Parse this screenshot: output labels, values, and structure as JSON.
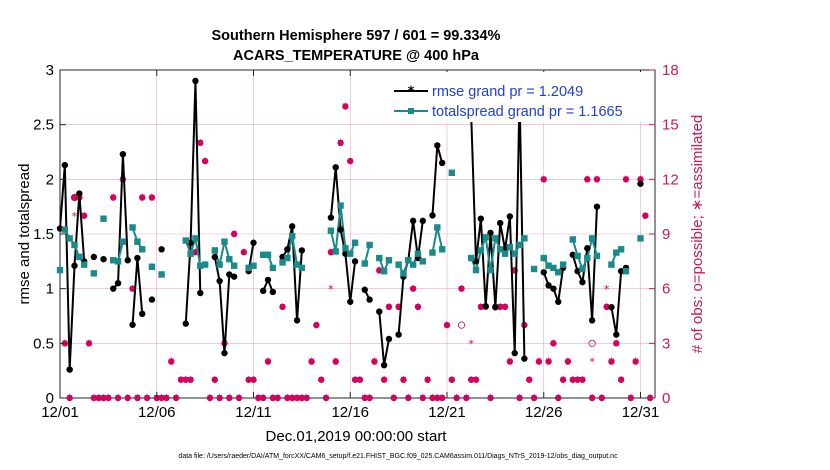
{
  "chart_data": {
    "type": "line",
    "title_line1": "Southern Hemisphere 597 / 601 = 99.334%",
    "title_line2": "ACARS_TEMPERATURE @ 400 hPa",
    "xlabel": "Dec.01,2019 00:00:00 start",
    "ylabel_left": "rmse and totalspread",
    "ylabel_right": "# of obs: o=possible; ∗=assimilated",
    "xlim": [
      0,
      30.75
    ],
    "ylim_left": [
      0,
      3
    ],
    "ylim_right": [
      0,
      18
    ],
    "x_ticks": [
      0,
      5,
      10,
      15,
      20,
      25,
      30
    ],
    "x_tick_labels": [
      "12/01",
      "12/06",
      "12/11",
      "12/16",
      "12/21",
      "12/26",
      "12/31"
    ],
    "y_ticks_left": [
      0,
      0.5,
      1,
      1.5,
      2,
      2.5,
      3
    ],
    "y_tick_labels_left": [
      "0",
      "0.5",
      "1",
      "1.5",
      "2",
      "2.5",
      "3"
    ],
    "y_ticks_right": [
      0,
      3,
      6,
      9,
      12,
      15,
      18
    ],
    "y_tick_labels_right": [
      "0",
      "3",
      "6",
      "9",
      "12",
      "15",
      "18"
    ],
    "grid": true,
    "legend_position": "top-right",
    "colors": {
      "rmse": "#000000",
      "spread": "#1a8a8a",
      "obs": "#d6005f",
      "legend_text": "#1f3fd6"
    },
    "series": [
      {
        "name": "rmse",
        "legend": "rmse grand pr = 1.2049",
        "segments": [
          [
            [
              0.0,
              1.55
            ],
            [
              0.25,
              2.13
            ],
            [
              0.5,
              0.26
            ],
            [
              0.75,
              1.21
            ],
            [
              1.0,
              1.87
            ],
            [
              1.25,
              1.25
            ]
          ],
          [
            [
              1.75,
              1.29
            ]
          ],
          [
            [
              2.25,
              1.27
            ]
          ],
          [
            [
              2.75,
              1.0
            ],
            [
              3.0,
              1.05
            ],
            [
              3.25,
              2.23
            ],
            [
              3.5,
              1.26
            ]
          ],
          [
            [
              3.75,
              0.67
            ],
            [
              4.0,
              1.28
            ],
            [
              4.25,
              0.77
            ]
          ],
          [
            [
              4.75,
              0.9
            ]
          ],
          [
            [
              5.25,
              1.36
            ]
          ],
          [
            [
              6.5,
              0.68
            ],
            [
              6.75,
              1.42
            ],
            [
              7.0,
              2.9
            ],
            [
              7.25,
              0.96
            ]
          ],
          [
            [
              8.0,
              1.29
            ],
            [
              8.25,
              1.07
            ],
            [
              8.5,
              0.41
            ],
            [
              8.75,
              1.13
            ],
            [
              9.0,
              1.11
            ]
          ],
          [
            [
              9.75,
              1.16
            ],
            [
              10.0,
              1.42
            ]
          ],
          [
            [
              10.5,
              0.98
            ],
            [
              10.75,
              1.08
            ],
            [
              11.0,
              0.97
            ]
          ],
          [
            [
              11.5,
              1.29
            ],
            [
              11.75,
              1.36
            ],
            [
              12.0,
              1.57
            ],
            [
              12.25,
              0.71
            ],
            [
              12.5,
              1.35
            ]
          ],
          [
            [
              14.0,
              1.65
            ],
            [
              14.25,
              2.11
            ],
            [
              14.5,
              1.54
            ],
            [
              14.75,
              1.32
            ],
            [
              15.0,
              0.88
            ],
            [
              15.25,
              1.25
            ]
          ],
          [
            [
              15.75,
              0.99
            ],
            [
              16.0,
              0.9
            ]
          ],
          [
            [
              16.5,
              0.79
            ],
            [
              16.75,
              0.3
            ],
            [
              17.0,
              0.54
            ]
          ],
          [
            [
              17.5,
              0.58
            ],
            [
              17.75,
              1.11
            ],
            [
              18.0,
              1.26
            ],
            [
              18.25,
              1.62
            ],
            [
              18.5,
              1.28
            ],
            [
              18.75,
              1.62
            ]
          ],
          [
            [
              19.25,
              1.67
            ],
            [
              19.5,
              2.31
            ],
            [
              19.75,
              2.15
            ]
          ],
          [
            [
              21.25,
              2.59
            ],
            [
              21.5,
              1.25
            ],
            [
              21.75,
              1.64
            ],
            [
              22.0,
              0.84
            ],
            [
              22.25,
              1.51
            ],
            [
              22.5,
              0.83
            ],
            [
              22.75,
              1.6
            ],
            [
              23.0,
              1.36
            ],
            [
              23.25,
              1.66
            ],
            [
              23.5,
              0.41
            ],
            [
              23.75,
              2.79
            ],
            [
              24.0,
              0.36
            ]
          ],
          [
            [
              25.0,
              1.15
            ],
            [
              25.25,
              1.03
            ],
            [
              25.5,
              1.0
            ],
            [
              25.75,
              0.88
            ],
            [
              26.0,
              1.19
            ]
          ],
          [
            [
              26.5,
              1.31
            ],
            [
              26.75,
              1.16
            ],
            [
              27.0,
              1.06
            ],
            [
              27.25,
              1.37
            ],
            [
              27.5,
              0.71
            ],
            [
              27.75,
              1.75
            ]
          ],
          [
            [
              28.5,
              0.83
            ],
            [
              28.75,
              0.58
            ],
            [
              29.0,
              1.16
            ]
          ],
          [
            [
              29.25,
              1.19
            ]
          ],
          [
            [
              30.0,
              1.96
            ]
          ]
        ]
      },
      {
        "name": "totalspread",
        "legend": "totalspread grand pr = 1.1665",
        "segments": [
          [
            [
              0.0,
              1.17
            ]
          ],
          [
            [
              0.25,
              1.54
            ],
            [
              0.5,
              1.46
            ],
            [
              0.75,
              1.4
            ],
            [
              1.0,
              1.29
            ],
            [
              1.25,
              1.22
            ]
          ],
          [
            [
              1.75,
              1.14
            ]
          ],
          [
            [
              2.25,
              1.64
            ]
          ],
          [
            [
              2.75,
              1.26
            ],
            [
              3.0,
              1.25
            ],
            [
              3.25,
              1.43
            ]
          ],
          [
            [
              3.75,
              1.56
            ],
            [
              4.0,
              1.43
            ],
            [
              4.25,
              1.36
            ]
          ],
          [
            [
              4.75,
              1.2
            ]
          ],
          [
            [
              5.25,
              1.13
            ]
          ],
          [
            [
              6.5,
              1.44
            ],
            [
              6.75,
              1.32
            ],
            [
              7.0,
              1.46
            ],
            [
              7.25,
              1.21
            ],
            [
              7.5,
              1.22
            ]
          ],
          [
            [
              8.0,
              1.35
            ],
            [
              8.25,
              1.22
            ],
            [
              8.5,
              1.43
            ],
            [
              8.75,
              1.27
            ],
            [
              9.0,
              1.21
            ]
          ],
          [
            [
              9.75,
              1.19
            ],
            [
              10.0,
              1.21
            ]
          ],
          [
            [
              10.5,
              1.31
            ],
            [
              10.75,
              1.31
            ],
            [
              11.0,
              1.19
            ]
          ],
          [
            [
              11.5,
              1.24
            ],
            [
              11.75,
              1.28
            ],
            [
              12.0,
              1.48
            ],
            [
              12.25,
              1.22
            ],
            [
              12.5,
              1.19
            ]
          ],
          [
            [
              14.0,
              1.53
            ],
            [
              14.25,
              1.34
            ],
            [
              14.5,
              1.76
            ],
            [
              14.75,
              1.37
            ],
            [
              15.0,
              1.32
            ],
            [
              15.25,
              1.42
            ]
          ],
          [
            [
              15.75,
              1.23
            ],
            [
              16.0,
              1.4
            ]
          ],
          [
            [
              16.5,
              1.28
            ],
            [
              16.75,
              1.16
            ],
            [
              17.0,
              1.26
            ]
          ],
          [
            [
              17.5,
              1.22
            ],
            [
              17.75,
              1.14
            ],
            [
              18.0,
              1.26
            ],
            [
              18.25,
              1.22
            ],
            [
              18.5,
              1.32
            ],
            [
              18.75,
              1.25
            ]
          ],
          [
            [
              19.25,
              1.33
            ],
            [
              19.5,
              1.56
            ],
            [
              19.75,
              1.36
            ]
          ],
          [
            [
              20.25,
              2.06
            ]
          ],
          [
            [
              21.25,
              1.28
            ],
            [
              21.5,
              1.17
            ],
            [
              21.75,
              1.35
            ],
            [
              22.0,
              1.47
            ],
            [
              22.25,
              1.17
            ],
            [
              22.5,
              1.46
            ],
            [
              22.75,
              1.36
            ],
            [
              23.0,
              1.32
            ],
            [
              23.25,
              1.38
            ],
            [
              23.5,
              1.32
            ],
            [
              23.75,
              1.4
            ],
            [
              24.0,
              1.46
            ]
          ],
          [
            [
              24.5,
              1.18
            ]
          ],
          [
            [
              25.0,
              1.28
            ],
            [
              25.25,
              1.21
            ],
            [
              25.5,
              1.19
            ],
            [
              25.75,
              1.15
            ],
            [
              26.0,
              1.22
            ]
          ],
          [
            [
              26.5,
              1.45
            ],
            [
              26.75,
              1.3
            ],
            [
              27.0,
              1.18
            ],
            [
              27.25,
              1.28
            ],
            [
              27.5,
              1.46
            ],
            [
              27.75,
              1.3
            ]
          ],
          [
            [
              28.5,
              1.22
            ],
            [
              28.75,
              1.33
            ],
            [
              29.0,
              1.36
            ]
          ],
          [
            [
              29.25,
              1.16
            ]
          ],
          [
            [
              30.0,
              1.46
            ]
          ]
        ]
      }
    ],
    "obs_possible": [
      [
        0.25,
        3
      ],
      [
        0.5,
        0
      ],
      [
        0.75,
        11
      ],
      [
        1.0,
        11
      ],
      [
        1.25,
        10
      ],
      [
        1.5,
        3
      ],
      [
        1.75,
        0
      ],
      [
        2.0,
        0
      ],
      [
        2.25,
        0
      ],
      [
        2.5,
        0
      ],
      [
        2.75,
        11
      ],
      [
        3.0,
        0
      ],
      [
        3.25,
        12
      ],
      [
        3.5,
        0
      ],
      [
        3.75,
        6
      ],
      [
        4.0,
        0
      ],
      [
        4.25,
        11
      ],
      [
        4.5,
        0
      ],
      [
        4.75,
        11
      ],
      [
        5.0,
        0
      ],
      [
        5.25,
        0
      ],
      [
        5.5,
        0
      ],
      [
        5.75,
        2
      ],
      [
        6.0,
        0
      ],
      [
        6.25,
        1
      ],
      [
        6.5,
        1
      ],
      [
        6.75,
        1
      ],
      [
        7.0,
        8
      ],
      [
        7.25,
        14
      ],
      [
        7.5,
        13
      ],
      [
        7.75,
        0
      ],
      [
        8.0,
        1
      ],
      [
        8.25,
        0
      ],
      [
        8.5,
        3
      ],
      [
        8.75,
        0
      ],
      [
        9.0,
        9
      ],
      [
        9.25,
        0
      ],
      [
        9.5,
        8
      ],
      [
        9.75,
        1
      ],
      [
        10.0,
        1
      ],
      [
        10.25,
        0
      ],
      [
        10.5,
        0
      ],
      [
        10.75,
        2
      ],
      [
        11.0,
        0
      ],
      [
        11.25,
        0
      ],
      [
        11.5,
        5
      ],
      [
        11.75,
        0
      ],
      [
        12.0,
        0
      ],
      [
        12.25,
        0
      ],
      [
        12.5,
        0
      ],
      [
        12.75,
        0
      ],
      [
        13.0,
        2
      ],
      [
        13.25,
        4
      ],
      [
        13.5,
        1
      ],
      [
        13.75,
        0
      ],
      [
        14.0,
        8
      ],
      [
        14.25,
        2
      ],
      [
        14.5,
        14
      ],
      [
        14.75,
        16
      ],
      [
        15.0,
        13
      ],
      [
        15.25,
        1
      ],
      [
        15.5,
        1
      ],
      [
        15.75,
        0
      ],
      [
        16.0,
        0
      ],
      [
        16.25,
        2
      ],
      [
        16.5,
        7
      ],
      [
        16.75,
        1
      ],
      [
        17.0,
        5
      ],
      [
        17.25,
        0
      ],
      [
        17.5,
        5
      ],
      [
        17.75,
        1
      ],
      [
        18.0,
        0
      ],
      [
        18.25,
        6
      ],
      [
        18.5,
        5
      ],
      [
        18.75,
        0
      ],
      [
        19.0,
        1
      ],
      [
        19.25,
        0
      ],
      [
        19.5,
        0
      ],
      [
        19.75,
        0
      ],
      [
        20.0,
        4
      ],
      [
        20.25,
        1
      ],
      [
        20.5,
        0
      ],
      [
        20.75,
        6
      ],
      [
        21.0,
        0
      ],
      [
        21.25,
        1
      ],
      [
        21.5,
        1
      ],
      [
        21.75,
        5
      ],
      [
        22.0,
        5
      ],
      [
        22.25,
        0
      ],
      [
        22.5,
        5
      ],
      [
        22.75,
        5
      ],
      [
        23.0,
        5
      ],
      [
        23.25,
        2
      ],
      [
        23.5,
        7
      ],
      [
        23.75,
        0
      ],
      [
        24.0,
        4
      ],
      [
        24.25,
        1
      ],
      [
        24.5,
        0
      ],
      [
        24.75,
        2
      ],
      [
        25.0,
        12
      ],
      [
        25.25,
        2
      ],
      [
        25.5,
        3
      ],
      [
        25.75,
        0
      ],
      [
        26.0,
        1
      ],
      [
        26.25,
        2
      ],
      [
        26.5,
        1
      ],
      [
        26.75,
        1
      ],
      [
        27.0,
        1
      ],
      [
        27.25,
        12
      ],
      [
        27.5,
        0
      ],
      [
        27.75,
        12
      ],
      [
        28.0,
        0
      ],
      [
        28.25,
        5
      ],
      [
        28.5,
        2
      ],
      [
        28.75,
        3
      ],
      [
        29.0,
        1
      ],
      [
        29.25,
        12
      ],
      [
        29.5,
        0
      ],
      [
        29.75,
        2
      ],
      [
        30.0,
        12
      ],
      [
        30.25,
        10
      ],
      [
        30.5,
        0
      ]
    ],
    "obs_hollow": [
      [
        0.75,
        11
      ],
      [
        20.75,
        4
      ],
      [
        27.5,
        3
      ]
    ],
    "obs_assimilated_only": [
      [
        0.75,
        10
      ],
      [
        14.0,
        6
      ],
      [
        21.25,
        3
      ],
      [
        27.5,
        2
      ],
      [
        28.25,
        6
      ]
    ]
  },
  "footer_text": "data file: /Users/raeder/DAI/ATM_forcXX/CAM6_setup/f.e21.FHIST_BGC.f09_025.CAM6assim.011/Diags_NTrS_2019-12/obs_diag_output.nc"
}
